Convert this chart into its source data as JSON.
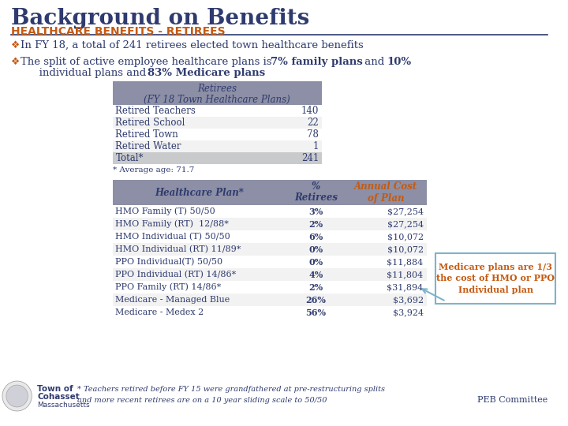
{
  "title": "Background on Benefits",
  "subtitle": "HEALTHCARE BENEFITS - RETIREES",
  "bullet1": "In FY 18, a total of 241 retirees elected town healthcare benefits",
  "bullet2_line1_normal": "The split of active employee healthcare plans is ",
  "bullet2_line1_bold1": "7% family plans",
  "bullet2_line1_normal2": " and ",
  "bullet2_line1_bold2": "10%",
  "bullet2_line2_normal": "   individual plans and ",
  "bullet2_line2_bold": "83% Medicare plans",
  "table1_header1": "Retirees",
  "table1_header2": "(FY 18 Town Healthcare Plans)",
  "table1_rows": [
    [
      "Retired Teachers",
      "140"
    ],
    [
      "Retired School",
      "22"
    ],
    [
      "Retired Town",
      "78"
    ],
    [
      "Retired Water",
      "1"
    ],
    [
      "Total*",
      "241"
    ]
  ],
  "table1_footer": "* Average age: 71.7",
  "table2_col1_header": "Healthcare Plan*",
  "table2_col2_header1": "%",
  "table2_col2_header2": "Retirees",
  "table2_col3_header1": "Annual Cost",
  "table2_col3_header2": "of Plan",
  "table2_rows": [
    [
      "HMO Family (T) 50/50",
      "3%",
      "$27,254"
    ],
    [
      "HMO Family (RT)  12/88*",
      "2%",
      "$27,254"
    ],
    [
      "HMO Individual (T) 50/50",
      "6%",
      "$10,072"
    ],
    [
      "HMO Individual (RT) 11/89*",
      "0%",
      "$10,072"
    ],
    [
      "PPO Individual(T) 50/50",
      "0%",
      "$11,884"
    ],
    [
      "PPO Individual (RT) 14/86*",
      "4%",
      "$11,804"
    ],
    [
      "PPO Family (RT) 14/86*",
      "2%",
      "$31,894"
    ],
    [
      "Medicare - Managed Blue",
      "26%",
      "$3,692"
    ],
    [
      "Medicare - Medex 2",
      "56%",
      "$3,924"
    ]
  ],
  "callout_text": "Medicare plans are 1/3\nthe cost of HMO or PPO\nIndividual plan",
  "footer_text1": "* Teachers retired before FY 15 were grandfathered at pre-restructuring splits",
  "footer_text2": "and more recent retirees are on a 10 year sliding scale to 50/50",
  "footer_right": "PEB Committee",
  "title_color": "#2F3B6E",
  "subtitle_color": "#C55A11",
  "header_bg": "#8C8FA5",
  "header_text_color": "#2F3B6E",
  "total_row_bg": "#C8CACC",
  "table2_header_bg": "#8C8FA5",
  "table2_col3_header_color": "#C55A11",
  "callout_border": "#7FB3C8",
  "callout_text_color": "#C55A11",
  "bg_color": "#FFFFFF",
  "body_text_color": "#2F3B6E",
  "bullet_color": "#C55A11",
  "line_color": "#2F3B6E",
  "row_alt_bg": "#F2F2F2"
}
